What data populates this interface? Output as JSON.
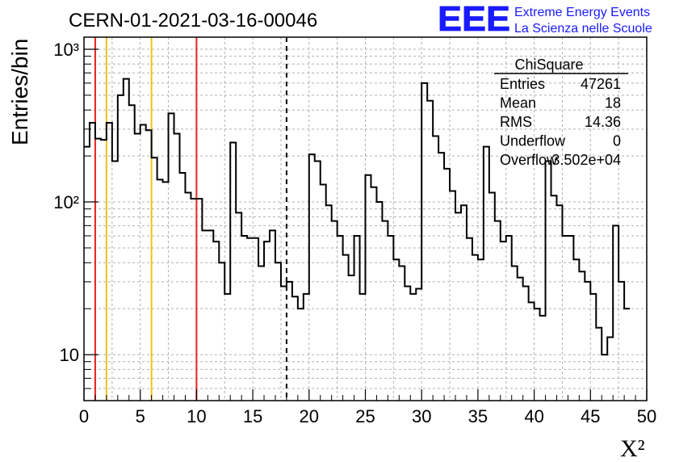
{
  "title": "CERN-01-2021-03-16-00046",
  "logo": {
    "letters": "EEE",
    "line1": "Extreme Energy Events",
    "line2": "La Scienza nelle Scuole",
    "color": "#1a1aff"
  },
  "stats": {
    "name": "ChiSquare",
    "rows": [
      {
        "label": "Entries",
        "value": "47261"
      },
      {
        "label": "Mean",
        "value": "18"
      },
      {
        "label": "RMS",
        "value": "14.36"
      },
      {
        "label": "Underflow",
        "value": "0"
      },
      {
        "label": "Overflow",
        "value": "3.502e+04"
      }
    ]
  },
  "chart_data": {
    "type": "histogram",
    "xlabel": "X²",
    "ylabel": "Entries/bin",
    "xlim": [
      0,
      50
    ],
    "ylim": [
      5,
      1200
    ],
    "yscale": "log",
    "grid": true,
    "bin_width": 0.5,
    "x_ticks": [
      "0",
      "5",
      "10",
      "15",
      "20",
      "25",
      "30",
      "35",
      "40",
      "45",
      "50"
    ],
    "y_ticks": [
      {
        "value": 10,
        "label": "10"
      },
      {
        "value": 100,
        "label": "10²"
      },
      {
        "value": 1000,
        "label": "10³"
      }
    ],
    "values": [
      230,
      330,
      260,
      255,
      330,
      185,
      500,
      640,
      430,
      280,
      320,
      295,
      195,
      140,
      135,
      380,
      280,
      155,
      115,
      105,
      105,
      65,
      65,
      55,
      40,
      25,
      245,
      85,
      60,
      58,
      58,
      38,
      55,
      65,
      40,
      28,
      30,
      24,
      20,
      25,
      205,
      185,
      130,
      95,
      75,
      60,
      45,
      33,
      60,
      25,
      150,
      125,
      100,
      75,
      60,
      42,
      38,
      28,
      25,
      27,
      600,
      460,
      270,
      210,
      165,
      118,
      85,
      95,
      58,
      45,
      42,
      230,
      115,
      75,
      55,
      60,
      38,
      32,
      28,
      22,
      20,
      18,
      185,
      110,
      95,
      60,
      60,
      42,
      35,
      30,
      25,
      15,
      10,
      13,
      70,
      30,
      20
    ],
    "vertical_lines": [
      {
        "x": 1,
        "color": "#e8231e",
        "style": "solid"
      },
      {
        "x": 2,
        "color": "#f2c21b",
        "style": "solid"
      },
      {
        "x": 6,
        "color": "#f2c21b",
        "style": "solid"
      },
      {
        "x": 10,
        "color": "#e8231e",
        "style": "solid"
      },
      {
        "x": 18,
        "color": "#000000",
        "style": "dashed"
      }
    ]
  }
}
